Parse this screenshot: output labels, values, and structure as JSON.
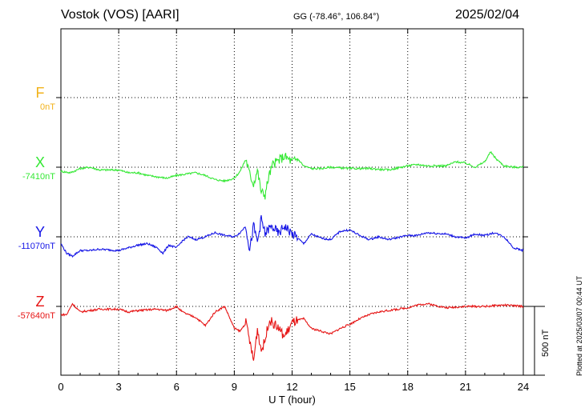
{
  "header": {
    "station": "Vostok (VOS)  [AARI]",
    "coords": "GG (-78.46°, 106.84°)",
    "date": "2025/02/04"
  },
  "plotted": "Plotted at 2025/03/07 00:44 UT",
  "chart_data": {
    "type": "line",
    "xlabel": "U T (hour)",
    "xlim": [
      0,
      24
    ],
    "xticks": [
      "0",
      "3",
      "6",
      "9",
      "12",
      "15",
      "18",
      "21",
      "24"
    ],
    "scale_label": "500 nT",
    "scale_nT": 500,
    "channels": [
      {
        "name": "F",
        "baseline": "0nT",
        "color": "#f2b21a",
        "values": []
      },
      {
        "name": "X",
        "baseline": "-7410nT",
        "color": "#33e833",
        "points": [
          [
            0,
            -30
          ],
          [
            0.5,
            -40
          ],
          [
            1,
            -10
          ],
          [
            1.5,
            0
          ],
          [
            2,
            -20
          ],
          [
            3,
            -20
          ],
          [
            3.5,
            -40
          ],
          [
            4,
            -40
          ],
          [
            4.5,
            -60
          ],
          [
            5,
            -70
          ],
          [
            5.5,
            -80
          ],
          [
            6,
            -60
          ],
          [
            6.5,
            -50
          ],
          [
            7,
            -40
          ],
          [
            7.5,
            -60
          ],
          [
            8,
            -90
          ],
          [
            8.5,
            -100
          ],
          [
            9,
            -80
          ],
          [
            9.3,
            -30
          ],
          [
            9.6,
            60
          ],
          [
            9.8,
            -50
          ],
          [
            10,
            -120
          ],
          [
            10.2,
            -20
          ],
          [
            10.4,
            -180
          ],
          [
            10.6,
            -200
          ],
          [
            10.8,
            -60
          ],
          [
            11,
            20
          ],
          [
            11.3,
            50
          ],
          [
            11.6,
            80
          ],
          [
            12,
            40
          ],
          [
            12.3,
            60
          ],
          [
            12.6,
            10
          ],
          [
            13,
            -10
          ],
          [
            13.5,
            -10
          ],
          [
            14,
            0
          ],
          [
            15,
            -10
          ],
          [
            16,
            -10
          ],
          [
            17,
            -20
          ],
          [
            18,
            10
          ],
          [
            18.5,
            20
          ],
          [
            19,
            10
          ],
          [
            20,
            10
          ],
          [
            20.5,
            40
          ],
          [
            21,
            30
          ],
          [
            21.5,
            0
          ],
          [
            22,
            40
          ],
          [
            22.3,
            110
          ],
          [
            22.6,
            60
          ],
          [
            23,
            10
          ],
          [
            23.5,
            0
          ],
          [
            24,
            0
          ]
        ]
      },
      {
        "name": "Y",
        "baseline": "-11070nT",
        "color": "#1414e6",
        "points": [
          [
            0,
            -50
          ],
          [
            0.3,
            -120
          ],
          [
            0.6,
            -140
          ],
          [
            1,
            -100
          ],
          [
            1.5,
            -100
          ],
          [
            2,
            -90
          ],
          [
            3,
            -100
          ],
          [
            3.5,
            -80
          ],
          [
            4,
            -60
          ],
          [
            4.5,
            -50
          ],
          [
            5,
            -80
          ],
          [
            5.3,
            -120
          ],
          [
            5.6,
            -60
          ],
          [
            6,
            -80
          ],
          [
            6.3,
            -30
          ],
          [
            6.6,
            0
          ],
          [
            7,
            -20
          ],
          [
            7.5,
            0
          ],
          [
            8,
            30
          ],
          [
            8.5,
            10
          ],
          [
            9,
            0
          ],
          [
            9.3,
            30
          ],
          [
            9.6,
            80
          ],
          [
            9.8,
            -100
          ],
          [
            10,
            80
          ],
          [
            10.2,
            -40
          ],
          [
            10.4,
            130
          ],
          [
            10.6,
            20
          ],
          [
            10.8,
            60
          ],
          [
            11,
            70
          ],
          [
            11.3,
            20
          ],
          [
            11.6,
            80
          ],
          [
            12,
            20
          ],
          [
            12.3,
            -10
          ],
          [
            12.6,
            -50
          ],
          [
            13,
            20
          ],
          [
            13.5,
            -10
          ],
          [
            14,
            -20
          ],
          [
            14.5,
            40
          ],
          [
            15,
            50
          ],
          [
            15.5,
            10
          ],
          [
            16,
            -20
          ],
          [
            16.5,
            0
          ],
          [
            17,
            -20
          ],
          [
            18,
            10
          ],
          [
            18.5,
            10
          ],
          [
            19,
            30
          ],
          [
            20,
            20
          ],
          [
            20.5,
            0
          ],
          [
            21,
            -10
          ],
          [
            21.5,
            20
          ],
          [
            22,
            10
          ],
          [
            22.5,
            30
          ],
          [
            23,
            0
          ],
          [
            23.5,
            -80
          ],
          [
            24,
            -100
          ]
        ]
      },
      {
        "name": "Z",
        "baseline": "-57640nT",
        "color": "#e61414",
        "points": [
          [
            0,
            -60
          ],
          [
            0.3,
            -60
          ],
          [
            0.6,
            20
          ],
          [
            1,
            -40
          ],
          [
            1.5,
            -30
          ],
          [
            2,
            -20
          ],
          [
            3,
            -20
          ],
          [
            3.5,
            -40
          ],
          [
            4,
            -30
          ],
          [
            5,
            -20
          ],
          [
            5.5,
            -30
          ],
          [
            6,
            0
          ],
          [
            6.3,
            -40
          ],
          [
            6.6,
            -60
          ],
          [
            7,
            -80
          ],
          [
            7.5,
            -140
          ],
          [
            8,
            -40
          ],
          [
            8.5,
            0
          ],
          [
            9,
            -160
          ],
          [
            9.3,
            -180
          ],
          [
            9.6,
            -120
          ],
          [
            9.8,
            -250
          ],
          [
            10,
            -400
          ],
          [
            10.2,
            -160
          ],
          [
            10.4,
            -320
          ],
          [
            10.6,
            -250
          ],
          [
            10.8,
            -100
          ],
          [
            11,
            -120
          ],
          [
            11.3,
            -160
          ],
          [
            11.6,
            -220
          ],
          [
            12,
            -120
          ],
          [
            12.3,
            -100
          ],
          [
            12.6,
            -90
          ],
          [
            13,
            -160
          ],
          [
            13.5,
            -180
          ],
          [
            14,
            -200
          ],
          [
            14.5,
            -160
          ],
          [
            15,
            -130
          ],
          [
            15.5,
            -90
          ],
          [
            16,
            -60
          ],
          [
            16.5,
            -40
          ],
          [
            17,
            -30
          ],
          [
            18,
            -10
          ],
          [
            18.5,
            10
          ],
          [
            19,
            20
          ],
          [
            20,
            -10
          ],
          [
            21,
            0
          ],
          [
            22,
            0
          ],
          [
            23,
            10
          ],
          [
            24,
            0
          ]
        ]
      }
    ]
  }
}
